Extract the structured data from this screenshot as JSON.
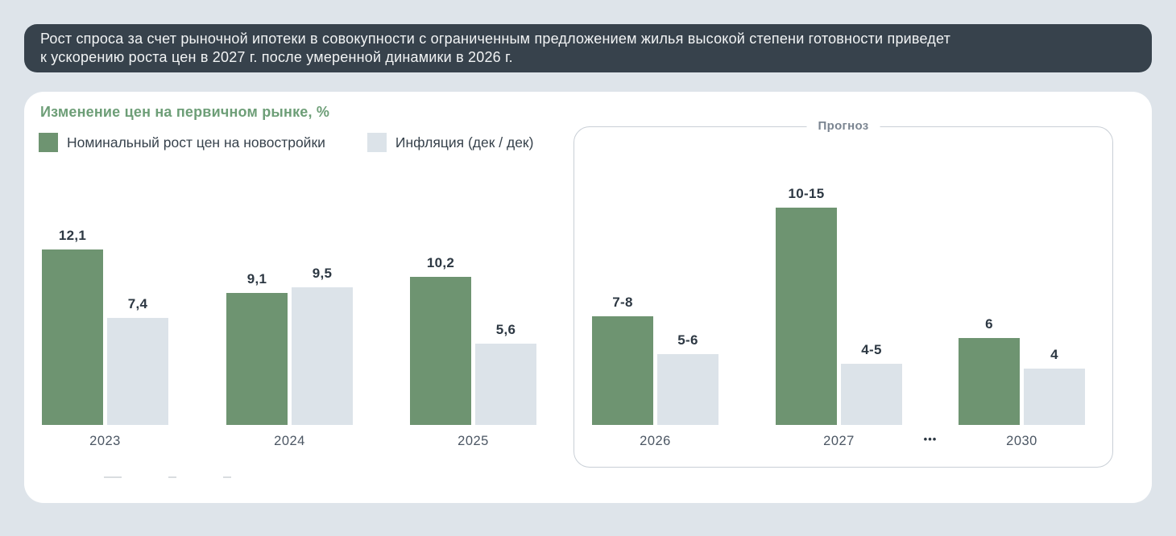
{
  "banner": {
    "line1": "Рост спроса за счет рыночной ипотеки в совокупности с ограниченным предложением жилья высокой степени готовности приведет",
    "line2": "к ускорению роста цен в 2027 г. после умеренной динамики в 2026 г.",
    "background": "#37424c",
    "text_color": "#f2f4f5"
  },
  "chart_card": {
    "title": "Изменение цен на первичном рынке, %",
    "title_color": "#6d9e77",
    "legend": [
      {
        "label": "Номинальный рост цен на новостройки",
        "color": "#6e9471"
      },
      {
        "label": "Инфляция (дек / дек)",
        "color": "#dce3e9"
      }
    ],
    "forecast_label": "Прогноз",
    "ellipsis": "•••"
  },
  "chart_data": {
    "type": "bar",
    "title": "Изменение цен на первичном рынке, %",
    "unit": "%",
    "axis": "hidden",
    "grid": false,
    "legend_position": "top-left",
    "categories": [
      "2023",
      "2024",
      "2025",
      "2026",
      "2027",
      "2030"
    ],
    "forecast_categories": [
      "2026",
      "2027",
      "2030"
    ],
    "series": [
      {
        "name": "Номинальный рост цен на новостройки",
        "color": "#6e9471",
        "labels": [
          "12,1",
          "9,1",
          "10,2",
          "7-8",
          "10-15",
          "6"
        ],
        "values": [
          12.1,
          9.1,
          10.2,
          7.5,
          15,
          6
        ]
      },
      {
        "name": "Инфляция (дек / дек)",
        "color": "#dce3e9",
        "labels": [
          "7,4",
          "9,5",
          "5,6",
          "5-6",
          "4-5",
          "4"
        ],
        "values": [
          7.4,
          9.5,
          5.6,
          4.9,
          4.2,
          3.9
        ]
      }
    ]
  }
}
